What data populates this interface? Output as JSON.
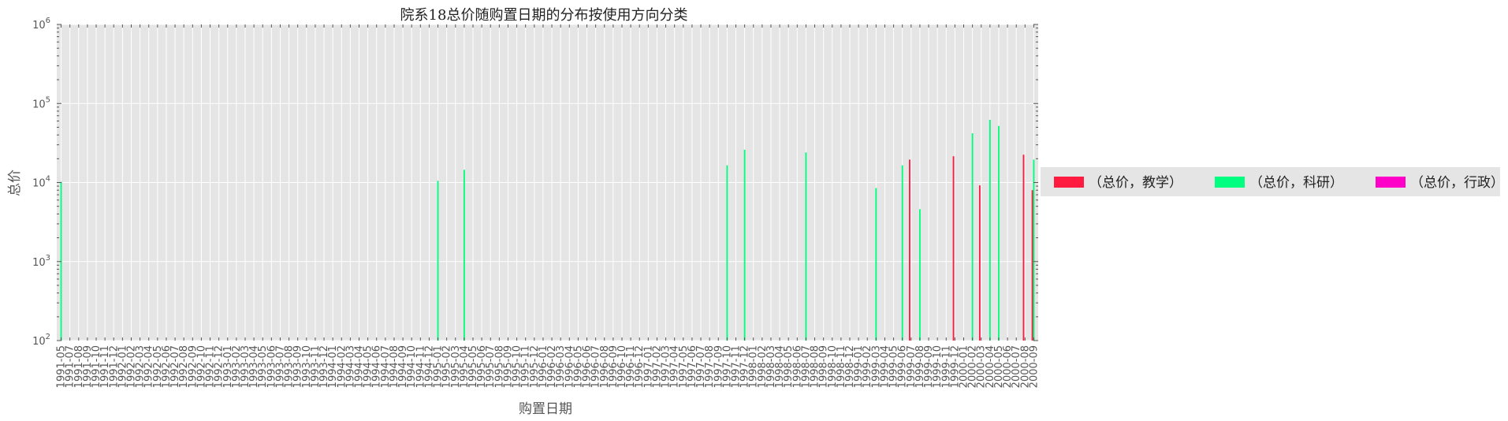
{
  "chart_data": {
    "type": "bar",
    "title": "院系18总价随购置日期的分布按使用方向分类",
    "xlabel": "购置日期",
    "ylabel": "总价",
    "yscale": "log",
    "ylim": [
      100,
      1000000
    ],
    "y_ticks": [
      {
        "value": 100,
        "base": "10",
        "exp": "2"
      },
      {
        "value": 1000,
        "base": "10",
        "exp": "3"
      },
      {
        "value": 10000,
        "base": "10",
        "exp": "4"
      },
      {
        "value": 100000,
        "base": "10",
        "exp": "5"
      },
      {
        "value": 1000000,
        "base": "10",
        "exp": "6"
      }
    ],
    "grid": true,
    "legend_position": "right",
    "categories": [
      "1991-05",
      "1991-07",
      "1991-08",
      "1991-09",
      "1991-10",
      "1991-11",
      "1991-12",
      "1992-01",
      "1992-02",
      "1992-03",
      "1992-04",
      "1992-05",
      "1992-06",
      "1992-07",
      "1992-08",
      "1992-09",
      "1992-10",
      "1992-11",
      "1992-12",
      "1993-01",
      "1993-02",
      "1993-03",
      "1993-04",
      "1993-05",
      "1993-06",
      "1993-07",
      "1993-08",
      "1993-09",
      "1993-10",
      "1993-11",
      "1993-12",
      "1994-01",
      "1994-02",
      "1994-03",
      "1994-04",
      "1994-05",
      "1994-06",
      "1994-07",
      "1994-08",
      "1994-09",
      "1994-10",
      "1994-11",
      "1994-12",
      "1995-01",
      "1995-02",
      "1995-03",
      "1995-04",
      "1995-05",
      "1995-06",
      "1995-07",
      "1995-08",
      "1995-09",
      "1995-10",
      "1995-11",
      "1995-12",
      "1996-01",
      "1996-02",
      "1996-03",
      "1996-04",
      "1996-05",
      "1996-06",
      "1996-07",
      "1996-08",
      "1996-09",
      "1996-10",
      "1996-11",
      "1996-12",
      "1997-01",
      "1997-02",
      "1997-03",
      "1997-04",
      "1997-05",
      "1997-06",
      "1997-07",
      "1997-08",
      "1997-09",
      "1997-10",
      "1997-11",
      "1997-12",
      "1998-01",
      "1998-02",
      "1998-03",
      "1998-04",
      "1998-05",
      "1998-06",
      "1998-07",
      "1998-08",
      "1998-09",
      "1998-10",
      "1998-11",
      "1998-12",
      "1999-01",
      "1999-02",
      "1999-03",
      "1999-04",
      "1999-05",
      "1999-06",
      "1999-07",
      "1999-08",
      "1999-09",
      "1999-10",
      "1999-11",
      "1999-12",
      "2000-01",
      "2000-02",
      "2000-03",
      "2000-04",
      "2000-05",
      "2000-06",
      "2000-07",
      "2000-08",
      "2000-09"
    ],
    "series": [
      {
        "name": "（总价，教学）",
        "color": "#ff1a40",
        "points": [
          [
            "1999-07",
            19500
          ],
          [
            "1999-12",
            21500
          ],
          [
            "2000-03",
            9200
          ],
          [
            "2000-08",
            22500
          ],
          [
            "2000-09",
            8000
          ]
        ]
      },
      {
        "name": "（总价，科研）",
        "color": "#00ff80",
        "points": [
          [
            "1991-05",
            10200
          ],
          [
            "1995-01",
            10500
          ],
          [
            "1995-04",
            14500
          ],
          [
            "1997-10",
            16500
          ],
          [
            "1997-12",
            26000
          ],
          [
            "1998-07",
            24000
          ],
          [
            "1999-03",
            8500
          ],
          [
            "1999-06",
            16500
          ],
          [
            "1999-08",
            4600
          ],
          [
            "2000-02",
            42000
          ],
          [
            "2000-04",
            62000
          ],
          [
            "2000-05",
            52000
          ],
          [
            "2000-09",
            19500
          ]
        ]
      },
      {
        "name": "（总价，行政）",
        "color": "#ff00c8",
        "points": []
      }
    ]
  }
}
